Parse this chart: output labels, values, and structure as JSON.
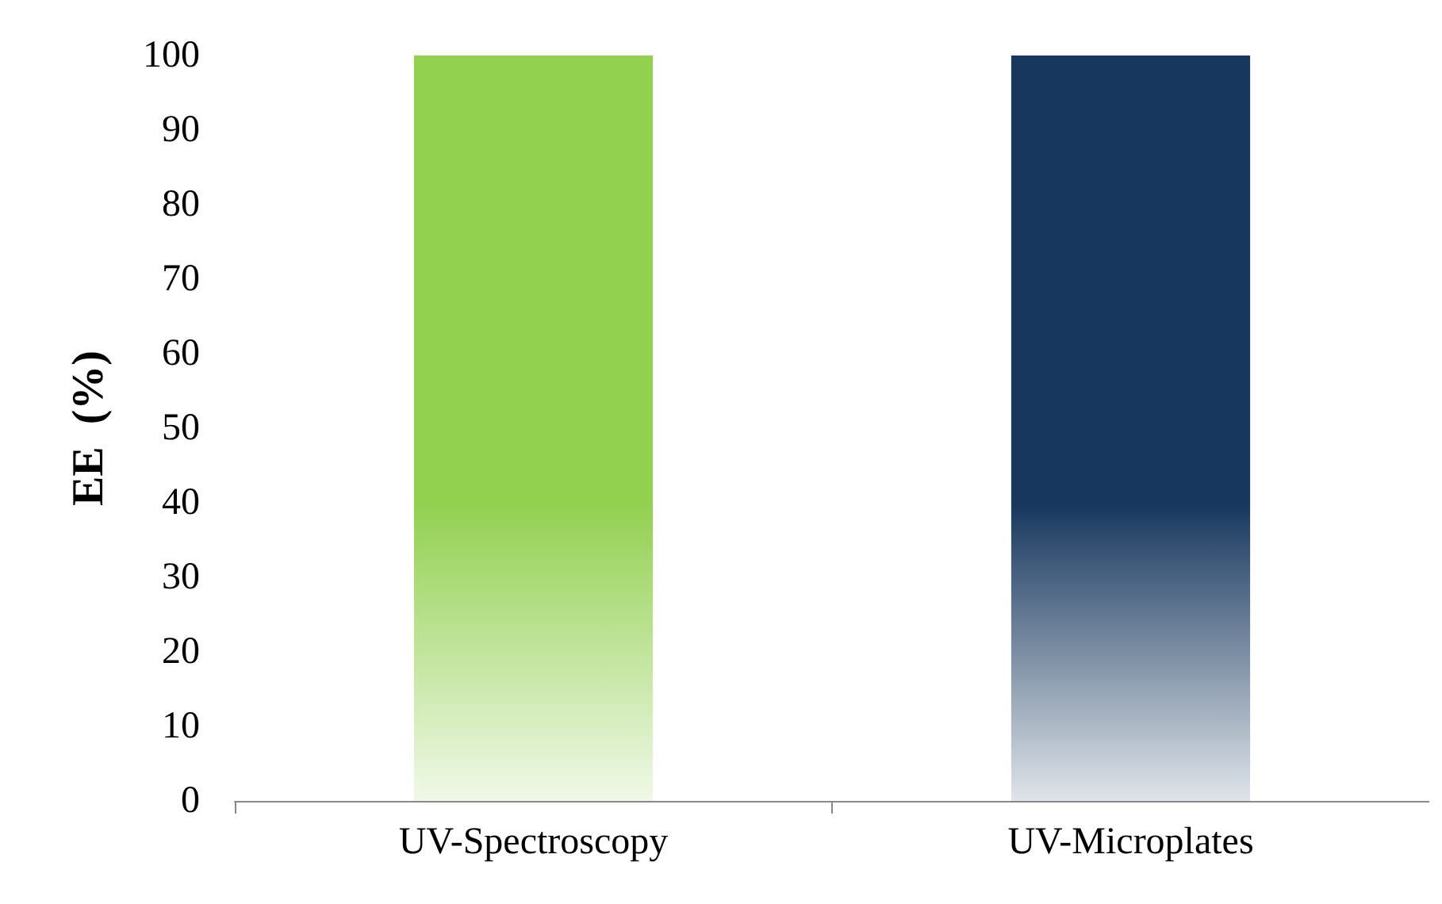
{
  "chart_data": {
    "type": "bar",
    "ylabel": "EE  (%)",
    "categories": [
      "UV-Spectroscopy",
      "UV-Microplates"
    ],
    "values": [
      100,
      100
    ],
    "colors": [
      "#92d050",
      "#17375e"
    ],
    "ylim": [
      0,
      100
    ],
    "yticks": [
      0,
      10,
      20,
      30,
      40,
      50,
      60,
      70,
      80,
      90,
      100
    ],
    "grid": false
  }
}
